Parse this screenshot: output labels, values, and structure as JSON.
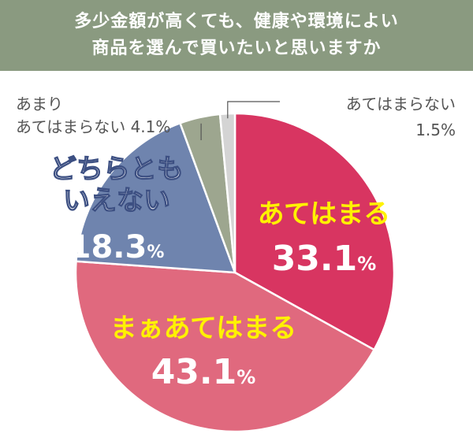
{
  "chart_data": {
    "type": "pie",
    "title_lines": [
      "多少金額が高くても、健康や環境によい",
      "商品を選んで買いたいと思いますか"
    ],
    "unit": "%",
    "slices": [
      {
        "label": "あてはまる",
        "label_lines": [
          "あてはまる"
        ],
        "value": 33.1,
        "value_text": "33.1",
        "color": "#d83561",
        "label_color": "#fff200",
        "value_color": "#ffffff"
      },
      {
        "label": "まぁあてはまる",
        "label_lines": [
          "まぁあてはまる"
        ],
        "value": 43.1,
        "value_text": "43.1",
        "color": "#e0697e",
        "label_color": "#fff200",
        "value_color": "#ffffff"
      },
      {
        "label": "どちらともいえない",
        "label_lines": [
          "どちらとも",
          "いえない"
        ],
        "value": 18.3,
        "value_text": "18.3",
        "color": "#6f84ae",
        "label_color": "#ffffff",
        "value_color": "#ffffff"
      },
      {
        "label": "あまりあてはまらない",
        "label_lines": [
          "あまり",
          "あてはまらない"
        ],
        "value": 4.1,
        "value_text": "4.1",
        "color": "#9da68f",
        "label_color": "#555555",
        "value_color": "#555555"
      },
      {
        "label": "あてはまらない",
        "label_lines": [
          "あてはまらない"
        ],
        "value": 1.5,
        "value_text": "1.5",
        "color": "#d4d4d4",
        "label_color": "#555555",
        "value_color": "#555555"
      }
    ]
  }
}
